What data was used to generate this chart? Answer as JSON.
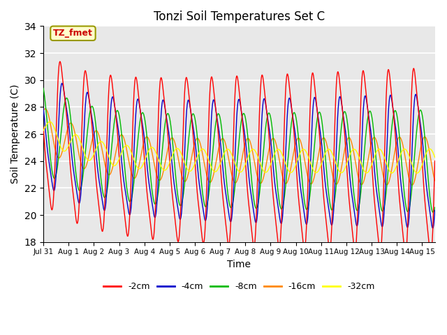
{
  "title": "Tonzi Soil Temperatures Set C",
  "xlabel": "Time",
  "ylabel": "Soil Temperature (C)",
  "ylim": [
    18,
    34
  ],
  "yticks": [
    18,
    20,
    22,
    24,
    26,
    28,
    30,
    32,
    34
  ],
  "xtick_labels": [
    "Jul 31",
    "Aug 1",
    "Aug 2",
    "Aug 3",
    "Aug 4",
    "Aug 5",
    "Aug 6",
    "Aug 7",
    "Aug 8",
    "Aug 9",
    "Aug 10",
    "Aug 11",
    "Aug 12",
    "Aug 13",
    "Aug 14",
    "Aug 15"
  ],
  "legend_labels": [
    "-2cm",
    "-4cm",
    "-8cm",
    "-16cm",
    "-32cm"
  ],
  "line_colors": [
    "#ff0000",
    "#0000cc",
    "#00bb00",
    "#ff8800",
    "#ffff00"
  ],
  "annotation_text": "TZ_fmet",
  "annotation_color": "#cc0000",
  "annotation_bg": "#ffffcc",
  "annotation_border": "#999900",
  "bg_color": "#e8e8e8",
  "num_days": 15.5,
  "points_per_day": 144
}
